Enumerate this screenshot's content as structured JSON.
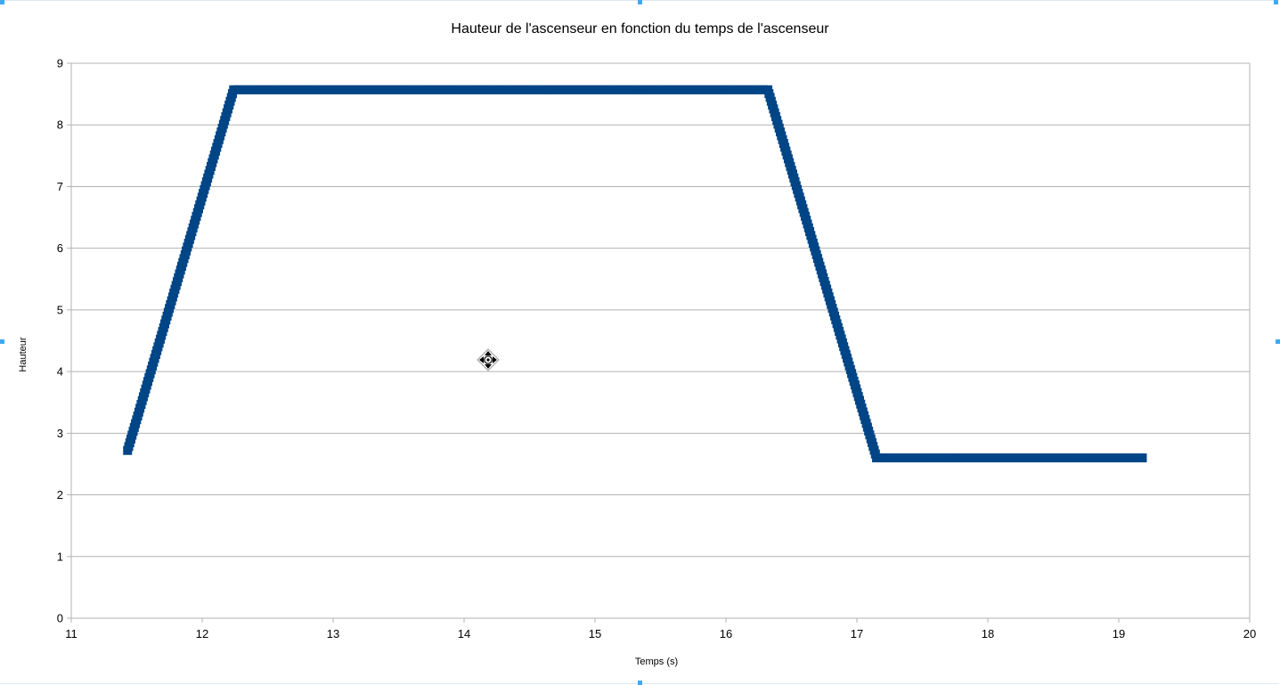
{
  "chart_data": {
    "type": "scatter",
    "title": "Hauteur de l'ascenseur en fonction du temps de l'ascenseur",
    "xlabel": "Temps (s)",
    "ylabel": "Hauteur",
    "xlim": [
      11,
      20
    ],
    "ylim": [
      0,
      9
    ],
    "x_ticks": [
      "11",
      "12",
      "13",
      "14",
      "15",
      "16",
      "17",
      "18",
      "19",
      "20"
    ],
    "y_ticks": [
      "0",
      "1",
      "2",
      "3",
      "4",
      "5",
      "6",
      "7",
      "8",
      "9"
    ],
    "grid": "horizontal",
    "legend": "none",
    "series": [
      {
        "color": "#004586",
        "marker": "square",
        "segments": [
          {
            "x_start": 11.43,
            "x_end": 12.24,
            "y_start": 2.72,
            "y_end": 8.57
          },
          {
            "x_start": 12.24,
            "x_end": 16.32,
            "y_start": 8.57,
            "y_end": 8.57
          },
          {
            "x_start": 16.32,
            "x_end": 17.15,
            "y_start": 8.57,
            "y_end": 2.6
          },
          {
            "x_start": 17.15,
            "x_end": 19.18,
            "y_start": 2.6,
            "y_end": 2.6
          }
        ]
      }
    ]
  },
  "cursor": {
    "icon": "move-cursor-icon"
  }
}
